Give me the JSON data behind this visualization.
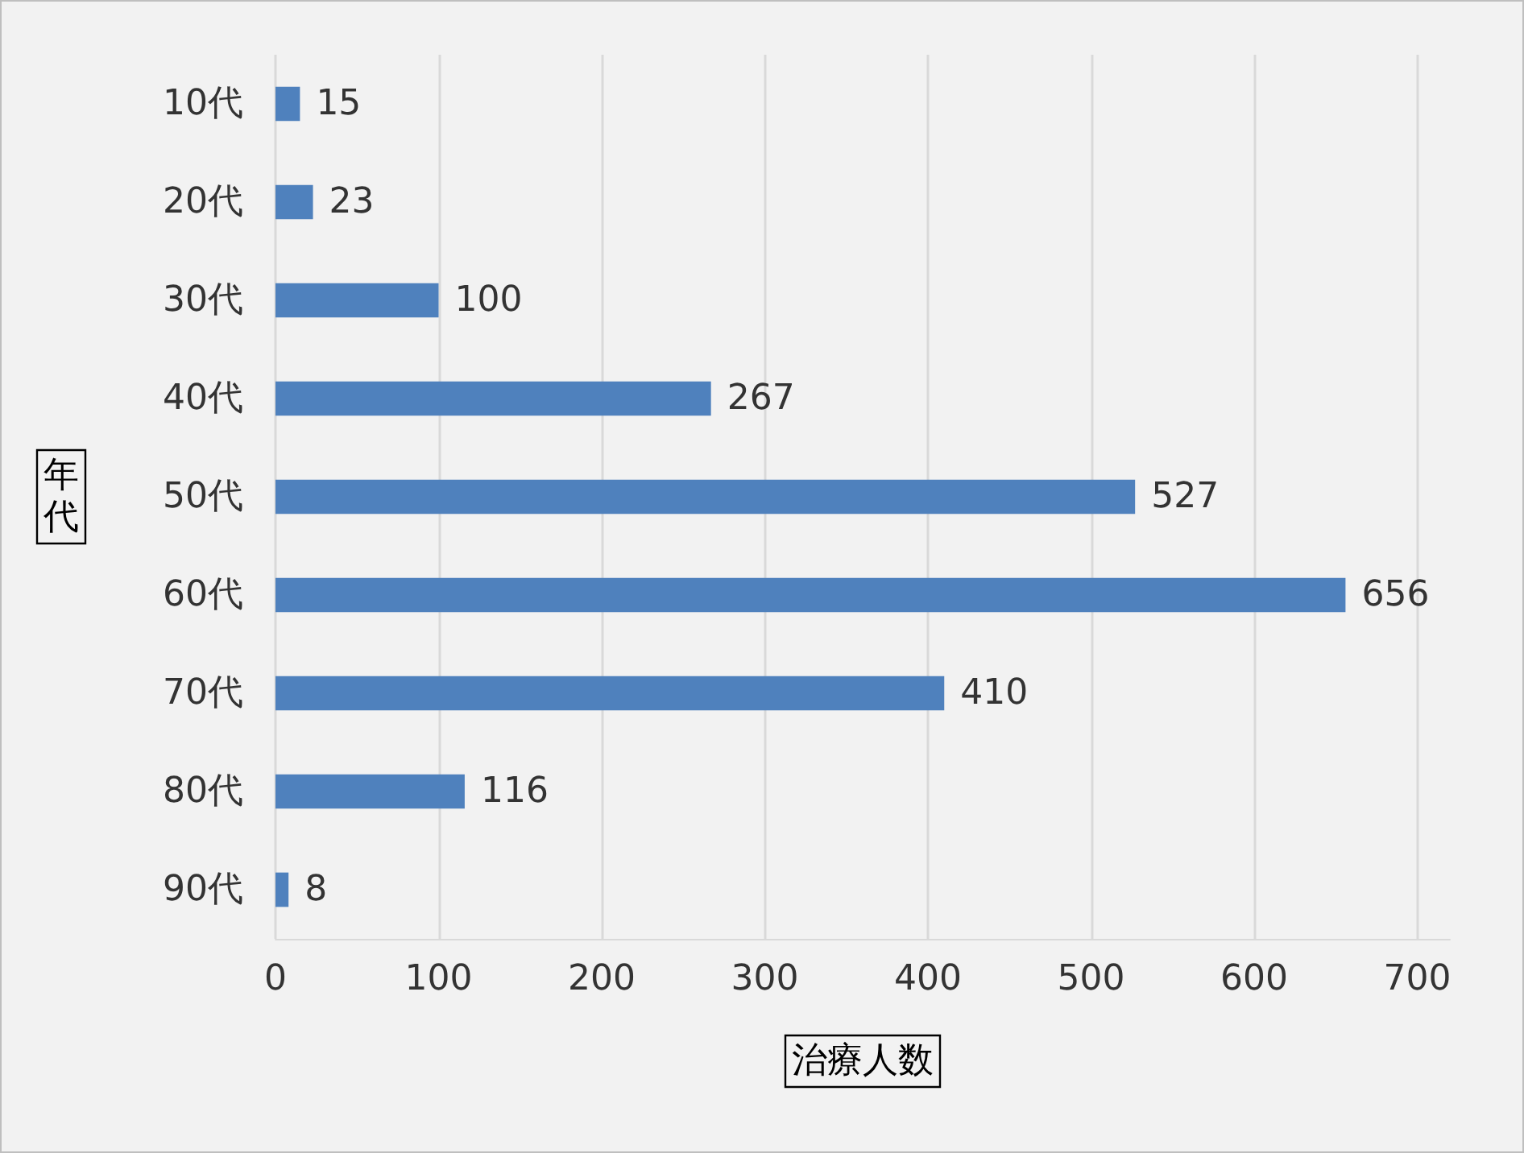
{
  "chart_data": {
    "type": "bar",
    "orientation": "horizontal",
    "xlabel": "治療人数",
    "ylabel": "年代",
    "categories": [
      "10代",
      "20代",
      "30代",
      "40代",
      "50代",
      "60代",
      "70代",
      "80代",
      "90代"
    ],
    "values": [
      15,
      23,
      100,
      267,
      527,
      656,
      410,
      116,
      8
    ],
    "color": "#4f81bd",
    "xlim": [
      0,
      720
    ],
    "xticks": [
      0,
      100,
      200,
      300,
      400,
      500,
      600,
      700
    ],
    "grid": "x",
    "data_labels": true
  }
}
